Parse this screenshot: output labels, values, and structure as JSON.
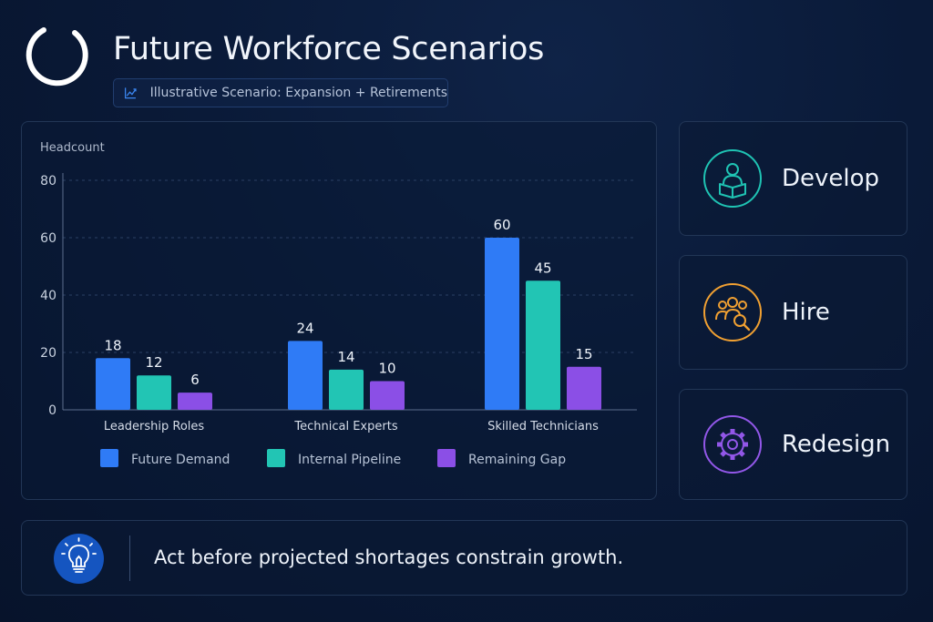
{
  "header": {
    "title": "Future Workforce Scenarios",
    "scenario_label": "Illustrative Scenario: Expansion + Retirements"
  },
  "chart_data": {
    "type": "bar",
    "ylabel": "Headcount",
    "ylim": [
      0,
      80
    ],
    "yticks": [
      0,
      20,
      40,
      60,
      80
    ],
    "grid": true,
    "legend_position": "bottom",
    "categories": [
      "Leadership Roles",
      "Technical Experts",
      "Skilled Technicians"
    ],
    "series": [
      {
        "name": "Future Demand",
        "values": [
          18,
          24,
          60
        ],
        "color": "#2f7bf6"
      },
      {
        "name": "Internal Pipeline",
        "values": [
          12,
          14,
          45
        ],
        "color": "#22c5b4"
      },
      {
        "name": "Remaining Gap",
        "values": [
          6,
          10,
          15
        ],
        "color": "#8b4fe6"
      }
    ]
  },
  "actions": [
    {
      "label": "Develop",
      "icon": "learner-book-icon",
      "color": "#1fc3b3"
    },
    {
      "label": "Hire",
      "icon": "team-search-icon",
      "color": "#f0a032"
    },
    {
      "label": "Redesign",
      "icon": "gear-icon",
      "color": "#9257e8"
    }
  ],
  "footer": {
    "message": "Act before projected shortages constrain growth.",
    "icon": "lightbulb-icon"
  }
}
